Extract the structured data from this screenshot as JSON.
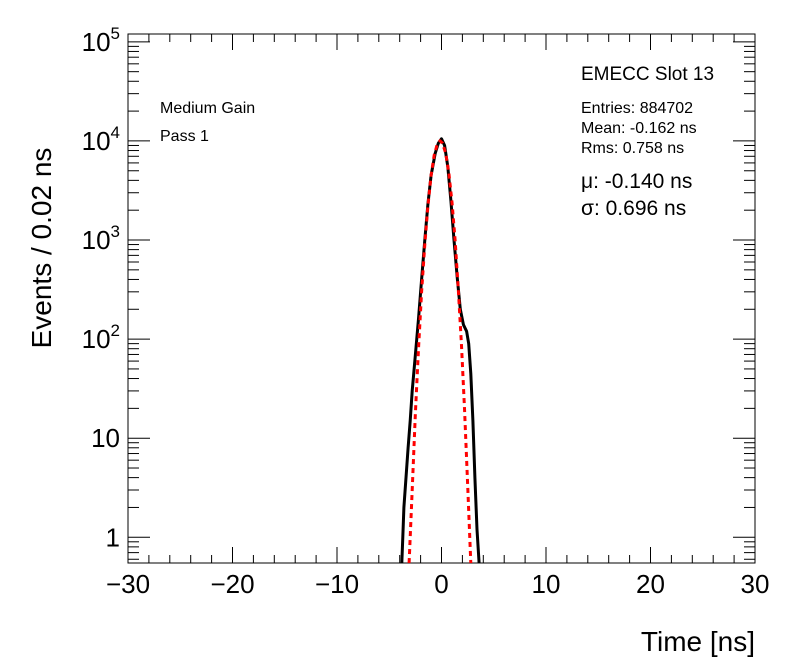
{
  "chart_data": {
    "type": "line",
    "title": "",
    "xlabel": "Time [ns]",
    "ylabel": "Events / 0.02 ns",
    "xlim": [
      -30,
      30
    ],
    "ylim": [
      0.55,
      120000
    ],
    "yscale": "log",
    "grid": false,
    "x_ticks": [
      {
        "value": -30,
        "label": "−30"
      },
      {
        "value": -20,
        "label": "−20"
      },
      {
        "value": -10,
        "label": "−10"
      },
      {
        "value": 0,
        "label": "0"
      },
      {
        "value": 10,
        "label": "10"
      },
      {
        "value": 20,
        "label": "20"
      },
      {
        "value": 30,
        "label": "30"
      }
    ],
    "y_ticks": [
      {
        "value": 1,
        "label": "1"
      },
      {
        "value": 10,
        "label": "10"
      },
      {
        "value": 100,
        "label": "10",
        "exp": "2"
      },
      {
        "value": 1000,
        "label": "10",
        "exp": "3"
      },
      {
        "value": 10000,
        "label": "10",
        "exp": "4"
      },
      {
        "value": 100000,
        "label": "10",
        "exp": "5"
      }
    ],
    "series": [
      {
        "color": "#000000",
        "style": "solid",
        "points": [
          [
            -3.8,
            0.55
          ],
          [
            -3.7,
            1.0
          ],
          [
            -3.6,
            2.0
          ],
          [
            -3.4,
            4.0
          ],
          [
            -3.2,
            8.0
          ],
          [
            -3.0,
            15
          ],
          [
            -2.8,
            30
          ],
          [
            -2.5,
            70
          ],
          [
            -2.2,
            160
          ],
          [
            -1.9,
            400
          ],
          [
            -1.6,
            1000
          ],
          [
            -1.3,
            2300
          ],
          [
            -1.0,
            4500
          ],
          [
            -0.6,
            7500
          ],
          [
            -0.3,
            9500
          ],
          [
            0.0,
            10500
          ],
          [
            0.3,
            9000
          ],
          [
            0.6,
            5500
          ],
          [
            0.9,
            2500
          ],
          [
            1.2,
            1000
          ],
          [
            1.5,
            420
          ],
          [
            1.8,
            200
          ],
          [
            2.1,
            140
          ],
          [
            2.4,
            120
          ],
          [
            2.6,
            90
          ],
          [
            2.8,
            45
          ],
          [
            3.0,
            15
          ],
          [
            3.2,
            4
          ],
          [
            3.4,
            1.2
          ],
          [
            3.6,
            0.55
          ]
        ]
      },
      {
        "color": "#ff0000",
        "style": "dashed",
        "points": [
          [
            -3.1,
            0.55
          ],
          [
            -2.8,
            3
          ],
          [
            -2.5,
            18
          ],
          [
            -2.2,
            80
          ],
          [
            -1.9,
            300
          ],
          [
            -1.6,
            900
          ],
          [
            -1.3,
            2200
          ],
          [
            -1.0,
            4500
          ],
          [
            -0.7,
            7200
          ],
          [
            -0.4,
            9300
          ],
          [
            -0.14,
            10000
          ],
          [
            0.1,
            9500
          ],
          [
            0.4,
            7500
          ],
          [
            0.7,
            4800
          ],
          [
            1.0,
            2400
          ],
          [
            1.3,
            1000
          ],
          [
            1.6,
            330
          ],
          [
            1.9,
            90
          ],
          [
            2.2,
            20
          ],
          [
            2.5,
            3.5
          ],
          [
            2.8,
            0.55
          ]
        ]
      }
    ]
  },
  "annotations": {
    "gain": "Medium Gain",
    "pass": "Pass 1",
    "slot": "EMECC Slot 13",
    "entries": "Entries: 884702",
    "mean": "Mean: -0.162 ns",
    "rms": "Rms: 0.758 ns",
    "mu": "μ: -0.140 ns",
    "sigma": "σ: 0.696 ns"
  }
}
